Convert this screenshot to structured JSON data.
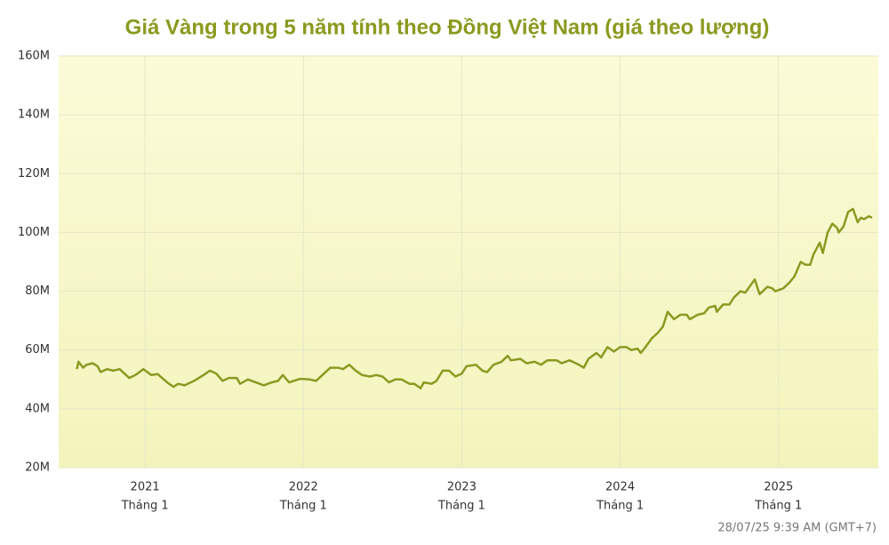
{
  "chart_data": {
    "type": "line",
    "title": "Giá Vàng trong 5 năm tính theo Đồng Việt Nam (giá theo lượng)",
    "footnote": "28/07/25 9:39 AM (GMT+7)",
    "xtick_sublabel": "Tháng 1",
    "xlim": [
      2020.455,
      2025.63
    ],
    "xticks": [
      2021,
      2022,
      2023,
      2024,
      2025
    ],
    "ylim": [
      20,
      160
    ],
    "yticks": [
      {
        "value": 20,
        "label": "20M"
      },
      {
        "value": 40,
        "label": "40M"
      },
      {
        "value": 60,
        "label": "60M"
      },
      {
        "value": 80,
        "label": "80M"
      },
      {
        "value": 100,
        "label": "100M"
      },
      {
        "value": 120,
        "label": "120M"
      },
      {
        "value": 140,
        "label": "140M"
      },
      {
        "value": 160,
        "label": "160M"
      }
    ],
    "grid": true,
    "color": "#8a9a22",
    "x": [
      2020.57,
      2020.58,
      2020.61,
      2020.63,
      2020.67,
      2020.7,
      2020.72,
      2020.76,
      2020.8,
      2020.84,
      2020.9,
      2020.94,
      2020.99,
      2021.04,
      2021.08,
      2021.14,
      2021.18,
      2021.21,
      2021.25,
      2021.31,
      2021.37,
      2021.41,
      2021.45,
      2021.49,
      2021.53,
      2021.58,
      2021.6,
      2021.65,
      2021.7,
      2021.75,
      2021.8,
      2021.84,
      2021.87,
      2021.91,
      2021.98,
      2022.04,
      2022.08,
      2022.13,
      2022.17,
      2022.22,
      2022.25,
      2022.29,
      2022.33,
      2022.37,
      2022.42,
      2022.46,
      2022.5,
      2022.54,
      2022.58,
      2022.62,
      2022.67,
      2022.7,
      2022.74,
      2022.76,
      2022.81,
      2022.84,
      2022.88,
      2022.92,
      2022.96,
      2023.0,
      2023.03,
      2023.09,
      2023.13,
      2023.16,
      2023.2,
      2023.25,
      2023.29,
      2023.31,
      2023.37,
      2023.41,
      2023.46,
      2023.5,
      2023.54,
      2023.6,
      2023.63,
      2023.68,
      2023.74,
      2023.77,
      2023.8,
      2023.85,
      2023.88,
      2023.92,
      2023.96,
      2024.0,
      2024.04,
      2024.07,
      2024.11,
      2024.13,
      2024.16,
      2024.2,
      2024.24,
      2024.27,
      2024.3,
      2024.34,
      2024.38,
      2024.42,
      2024.44,
      2024.49,
      2024.53,
      2024.56,
      2024.6,
      2024.61,
      2024.65,
      2024.69,
      2024.72,
      2024.76,
      2024.79,
      2024.85,
      2024.88,
      2024.93,
      2024.96,
      2024.98,
      2025.03,
      2025.07,
      2025.1,
      2025.14,
      2025.17,
      2025.2,
      2025.22,
      2025.26,
      2025.28,
      2025.31,
      2025.34,
      2025.37,
      2025.38,
      2025.41,
      2025.44,
      2025.47,
      2025.5,
      2025.52,
      2025.54,
      2025.57,
      2025.59
    ],
    "values": [
      53.5,
      56,
      54,
      55,
      55.5,
      54.5,
      52.5,
      53.5,
      53,
      53.5,
      50.5,
      51.5,
      53.5,
      51.5,
      51.8,
      49,
      47.5,
      48.5,
      48,
      49.5,
      51.5,
      53,
      52,
      49.5,
      50.5,
      50.5,
      48.5,
      50,
      49,
      48,
      49,
      49.5,
      51.5,
      49,
      50.2,
      50,
      49.5,
      52,
      54,
      54,
      53.5,
      55,
      53,
      51.5,
      51,
      51.5,
      51,
      49,
      50,
      50,
      48.5,
      48.5,
      47,
      49,
      48.5,
      49.5,
      53,
      53,
      51,
      52,
      54.5,
      55,
      53,
      52.5,
      55,
      56,
      58,
      56.5,
      57,
      55.5,
      56,
      55,
      56.5,
      56.5,
      55.5,
      56.5,
      55,
      54,
      57,
      59,
      57.5,
      61,
      59.5,
      61,
      61,
      60,
      60.5,
      59,
      61,
      64,
      66,
      68,
      73,
      70.5,
      72,
      72,
      70.5,
      72,
      72.5,
      74.5,
      75,
      73,
      75.5,
      75.5,
      78,
      80,
      79.5,
      84,
      79,
      81.5,
      81,
      80,
      81,
      83,
      85,
      90,
      89,
      89,
      92.5,
      96.5,
      93,
      100,
      103,
      101.5,
      100,
      102,
      107,
      108,
      103.5,
      105,
      104.5,
      105.5,
      105
    ]
  }
}
